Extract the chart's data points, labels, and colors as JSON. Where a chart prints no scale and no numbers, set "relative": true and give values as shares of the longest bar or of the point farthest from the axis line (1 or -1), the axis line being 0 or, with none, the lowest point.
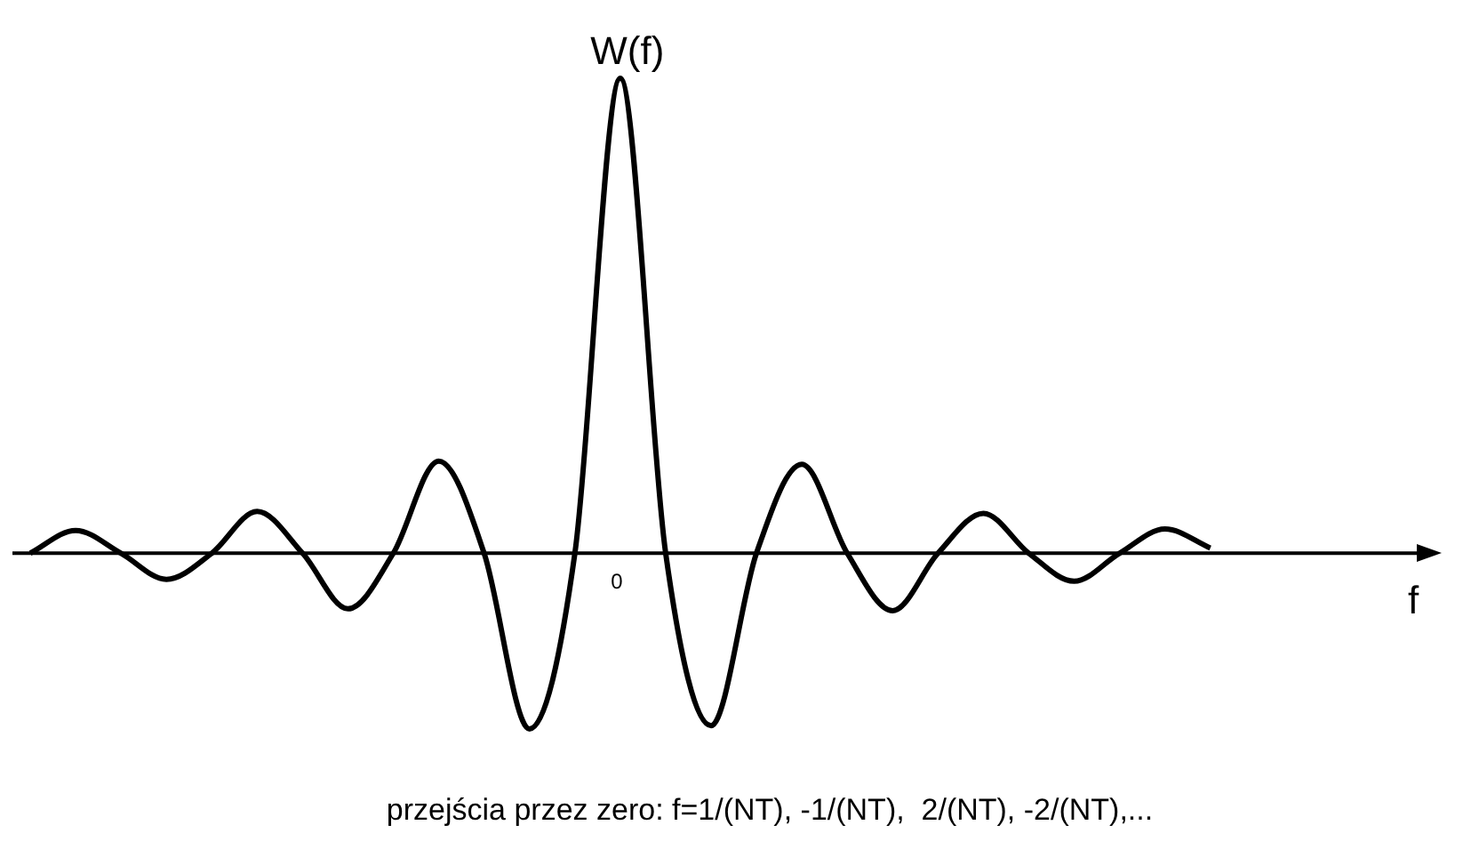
{
  "chart_data": {
    "type": "line",
    "relative": true,
    "ylabel": "W(f)",
    "xlabel": "f",
    "annotations": [
      "0",
      "przejścia przez zero: f=1/(NT), -1/(NT),  2/(NT), -2/(NT),..."
    ],
    "categories": [
      null,
      null,
      null,
      null,
      null,
      null,
      null,
      null,
      null,
      null,
      null,
      null,
      null,
      null,
      null,
      null,
      null,
      null,
      null,
      null,
      null,
      null,
      null,
      null,
      null,
      null,
      null,
      null,
      null,
      null,
      null
    ],
    "series": [
      {
        "color": "#000000",
        "values": [
          0,
          0.048,
          0,
          -0.055,
          0,
          0.088,
          0,
          -0.117,
          0,
          0.194,
          0,
          -0.37,
          0,
          1,
          0,
          -0.363,
          0,
          0.187,
          0,
          -0.121,
          0,
          0.084,
          0,
          -0.059,
          0,
          0.051,
          0.011,
          null,
          null,
          null,
          null
        ]
      }
    ],
    "marker": "none",
    "line_style": "solid",
    "grid": false,
    "legend": false
  }
}
